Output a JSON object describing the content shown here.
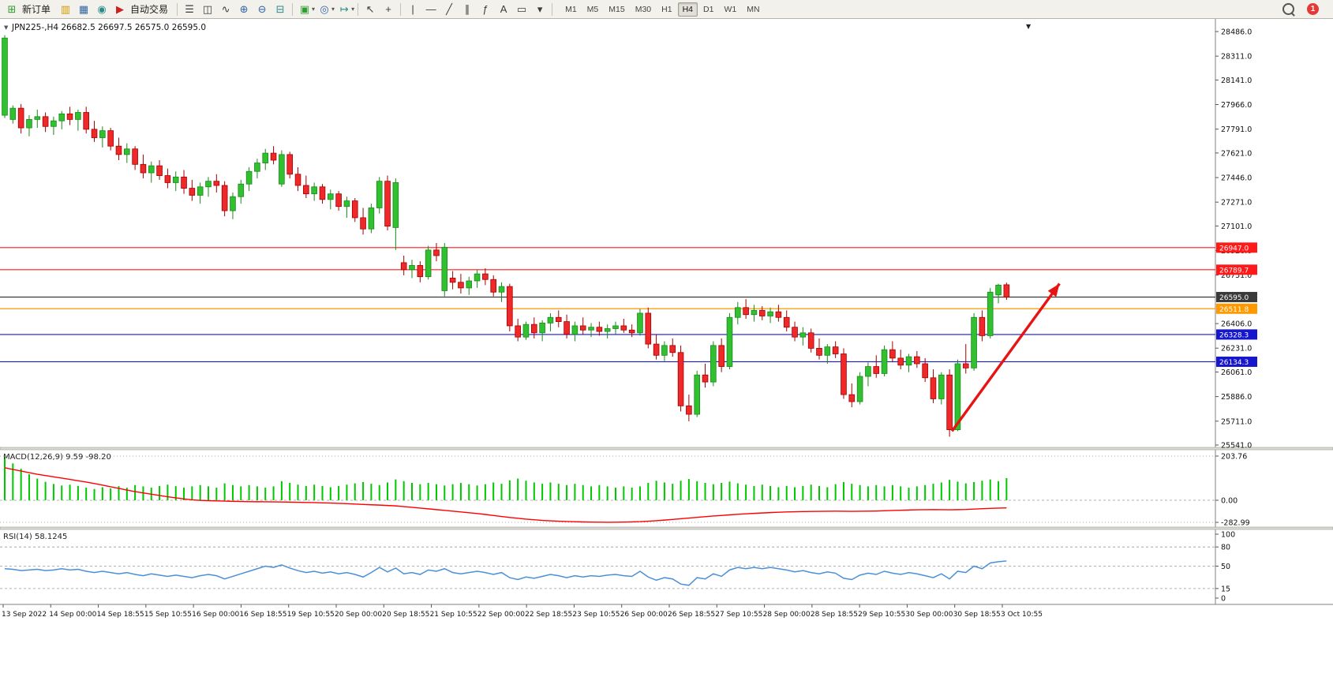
{
  "toolbar": {
    "new_order": "新订单",
    "auto_trading": "自动交易",
    "timeframes": [
      "M1",
      "M5",
      "M15",
      "M30",
      "H1",
      "H4",
      "D1",
      "W1",
      "MN"
    ],
    "active_timeframe": "H4",
    "notification_count": "1"
  },
  "icons": {
    "new_order": "⊞",
    "market_watch": "▥",
    "data_window": "▦",
    "alerts": "◉",
    "auto_trading": "▶",
    "bar_chart": "☰",
    "candle_chart": "◫",
    "line_chart": "∿",
    "zoom_in": "⊕",
    "zoom_out": "⊖",
    "tile_windows": "⊟",
    "new_chart": "▣",
    "navigator": "◎",
    "chart_shift": "↦",
    "cursor": "↖",
    "crosshair": "+",
    "vline": "|",
    "hline": "—",
    "trendline": "╱",
    "channel": "∥",
    "fibonacci": "ƒ",
    "text": "A",
    "label": "▭",
    "shapes": "▾",
    "dropdown": "▾",
    "chart_menu": "▼",
    "collapse": "▼"
  },
  "chart_data": {
    "type": "candlestick",
    "symbol": "JPN225-",
    "timeframe": "H4",
    "title_text": "JPN225-,H4 26682.5 26697.5 26575.0 26595.0",
    "current_ohlc": {
      "open": 26682.5,
      "high": 26697.5,
      "low": 26575.0,
      "close": 26595.0
    },
    "ylim": [
      25541.0,
      28486.0
    ],
    "price_axis_ticks": [
      28486.0,
      28311.0,
      28141.0,
      27966.0,
      27791.0,
      27621.0,
      27446.0,
      27271.0,
      27101.0,
      26926.0,
      26751.0,
      26406.0,
      26231.0,
      26061.0,
      25886.0,
      25711.0,
      25541.0
    ],
    "x_labels": [
      "13 Sep 2022",
      "14 Sep 00:00",
      "14 Sep 18:55",
      "15 Sep 10:55",
      "16 Sep 00:00",
      "16 Sep 18:55",
      "19 Sep 10:55",
      "20 Sep 00:00",
      "20 Sep 18:55",
      "21 Sep 10:55",
      "22 Sep 00:00",
      "22 Sep 18:55",
      "23 Sep 10:55",
      "26 Sep 00:00",
      "26 Sep 18:55",
      "27 Sep 10:55",
      "28 Sep 00:00",
      "28 Sep 18:55",
      "29 Sep 10:55",
      "30 Sep 00:00",
      "30 Sep 18:55",
      "3 Oct 10:55"
    ],
    "horizontal_lines": [
      {
        "price": 26947.0,
        "label": "26947.0",
        "color": "#ff1a1a"
      },
      {
        "price": 26789.7,
        "label": "26789.7",
        "color": "#ff1a1a"
      },
      {
        "price": 26595.0,
        "label": "26595.0",
        "color": "#3a3a3a"
      },
      {
        "price": 26511.8,
        "label": "26511.8",
        "color": "#ff9900"
      },
      {
        "price": 26328.3,
        "label": "26328.3",
        "color": "#1616cc"
      },
      {
        "price": 26134.3,
        "label": "26134.3",
        "color": "#1616cc"
      }
    ],
    "arrow_annotation": {
      "from_index": 116.3,
      "from_price": 25640,
      "to_index": 129.5,
      "to_price": 26690,
      "color": "#e81313"
    },
    "colors": {
      "up_fill": "#30c030",
      "up_stroke": "#1a8a1a",
      "down_fill": "#ef2929",
      "down_stroke": "#a40000"
    },
    "candles_ohlc": [
      [
        27890,
        28460,
        27870,
        28440
      ],
      [
        27860,
        27960,
        27830,
        27940
      ],
      [
        27940,
        27970,
        27760,
        27800
      ],
      [
        27800,
        27890,
        27740,
        27860
      ],
      [
        27860,
        27930,
        27800,
        27880
      ],
      [
        27880,
        27910,
        27770,
        27810
      ],
      [
        27810,
        27880,
        27750,
        27850
      ],
      [
        27850,
        27920,
        27790,
        27900
      ],
      [
        27900,
        27950,
        27820,
        27860
      ],
      [
        27860,
        27930,
        27780,
        27910
      ],
      [
        27910,
        27950,
        27760,
        27790
      ],
      [
        27790,
        27850,
        27700,
        27730
      ],
      [
        27730,
        27810,
        27660,
        27780
      ],
      [
        27780,
        27800,
        27640,
        27670
      ],
      [
        27670,
        27730,
        27570,
        27610
      ],
      [
        27610,
        27690,
        27550,
        27650
      ],
      [
        27650,
        27670,
        27500,
        27540
      ],
      [
        27540,
        27610,
        27440,
        27480
      ],
      [
        27480,
        27560,
        27410,
        27530
      ],
      [
        27530,
        27570,
        27430,
        27460
      ],
      [
        27460,
        27510,
        27370,
        27410
      ],
      [
        27410,
        27490,
        27350,
        27450
      ],
      [
        27450,
        27500,
        27330,
        27370
      ],
      [
        27370,
        27430,
        27280,
        27320
      ],
      [
        27320,
        27410,
        27260,
        27380
      ],
      [
        27380,
        27450,
        27310,
        27420
      ],
      [
        27420,
        27470,
        27340,
        27390
      ],
      [
        27390,
        27420,
        27170,
        27210
      ],
      [
        27210,
        27340,
        27150,
        27310
      ],
      [
        27310,
        27430,
        27260,
        27400
      ],
      [
        27400,
        27520,
        27350,
        27490
      ],
      [
        27490,
        27580,
        27440,
        27550
      ],
      [
        27550,
        27650,
        27500,
        27620
      ],
      [
        27620,
        27670,
        27540,
        27570
      ],
      [
        27400,
        27640,
        27380,
        27610
      ],
      [
        27610,
        27630,
        27440,
        27470
      ],
      [
        27470,
        27520,
        27350,
        27390
      ],
      [
        27390,
        27460,
        27300,
        27330
      ],
      [
        27330,
        27410,
        27280,
        27380
      ],
      [
        27380,
        27400,
        27260,
        27290
      ],
      [
        27290,
        27360,
        27220,
        27330
      ],
      [
        27330,
        27350,
        27210,
        27240
      ],
      [
        27240,
        27310,
        27160,
        27280
      ],
      [
        27280,
        27300,
        27130,
        27160
      ],
      [
        27160,
        27230,
        27040,
        27080
      ],
      [
        27080,
        27260,
        27050,
        27230
      ],
      [
        27230,
        27450,
        27190,
        27420
      ],
      [
        27420,
        27460,
        27070,
        27100
      ],
      [
        27090,
        27440,
        26930,
        27410
      ],
      [
        26840,
        26890,
        26750,
        26790
      ],
      [
        26790,
        26860,
        26730,
        26820
      ],
      [
        26820,
        26850,
        26700,
        26740
      ],
      [
        26740,
        26960,
        26720,
        26930
      ],
      [
        26930,
        26980,
        26850,
        26890
      ],
      [
        26640,
        26980,
        26600,
        26950
      ],
      [
        26730,
        26780,
        26650,
        26700
      ],
      [
        26700,
        26760,
        26620,
        26660
      ],
      [
        26660,
        26740,
        26610,
        26710
      ],
      [
        26710,
        26790,
        26660,
        26760
      ],
      [
        26760,
        26800,
        26680,
        26720
      ],
      [
        26720,
        26750,
        26600,
        26630
      ],
      [
        26630,
        26700,
        26560,
        26670
      ],
      [
        26670,
        26690,
        26350,
        26390
      ],
      [
        26390,
        26440,
        26280,
        26310
      ],
      [
        26310,
        26420,
        26290,
        26400
      ],
      [
        26400,
        26450,
        26300,
        26340
      ],
      [
        26340,
        26430,
        26280,
        26410
      ],
      [
        26410,
        26480,
        26350,
        26450
      ],
      [
        26450,
        26500,
        26380,
        26420
      ],
      [
        26420,
        26470,
        26300,
        26330
      ],
      [
        26330,
        26420,
        26280,
        26390
      ],
      [
        26390,
        26450,
        26330,
        26360
      ],
      [
        26360,
        26410,
        26310,
        26380
      ],
      [
        26380,
        26420,
        26320,
        26350
      ],
      [
        26350,
        26400,
        26300,
        26370
      ],
      [
        26370,
        26420,
        26330,
        26390
      ],
      [
        26390,
        26440,
        26340,
        26360
      ],
      [
        26360,
        26400,
        26310,
        26340
      ],
      [
        26340,
        26510,
        26320,
        26480
      ],
      [
        26480,
        26520,
        26230,
        26260
      ],
      [
        26260,
        26330,
        26150,
        26180
      ],
      [
        26180,
        26280,
        26140,
        26250
      ],
      [
        26250,
        26300,
        26170,
        26200
      ],
      [
        26200,
        26250,
        25780,
        25820
      ],
      [
        25820,
        25900,
        25710,
        25760
      ],
      [
        25760,
        26070,
        25740,
        26040
      ],
      [
        26040,
        26120,
        25950,
        25990
      ],
      [
        25990,
        26280,
        25960,
        26250
      ],
      [
        26250,
        26300,
        26060,
        26100
      ],
      [
        26100,
        26480,
        26080,
        26450
      ],
      [
        26450,
        26560,
        26400,
        26520
      ],
      [
        26520,
        26580,
        26440,
        26470
      ],
      [
        26470,
        26540,
        26420,
        26500
      ],
      [
        26500,
        26530,
        26430,
        26460
      ],
      [
        26460,
        26520,
        26410,
        26490
      ],
      [
        26490,
        26540,
        26420,
        26450
      ],
      [
        26450,
        26500,
        26350,
        26380
      ],
      [
        26380,
        26420,
        26280,
        26310
      ],
      [
        26310,
        26380,
        26250,
        26340
      ],
      [
        26340,
        26370,
        26200,
        26230
      ],
      [
        26230,
        26300,
        26150,
        26180
      ],
      [
        26180,
        26260,
        26120,
        26240
      ],
      [
        26240,
        26280,
        26160,
        26190
      ],
      [
        26190,
        26230,
        25870,
        25900
      ],
      [
        25900,
        25980,
        25810,
        25850
      ],
      [
        25850,
        26060,
        25830,
        26030
      ],
      [
        26030,
        26130,
        25960,
        26100
      ],
      [
        26100,
        26180,
        26020,
        26050
      ],
      [
        26050,
        26250,
        26030,
        26220
      ],
      [
        26220,
        26280,
        26130,
        26160
      ],
      [
        26160,
        26220,
        26080,
        26110
      ],
      [
        26110,
        26190,
        26060,
        26170
      ],
      [
        26170,
        26210,
        26090,
        26120
      ],
      [
        26120,
        26160,
        25990,
        26020
      ],
      [
        26020,
        26080,
        25840,
        25870
      ],
      [
        25870,
        26060,
        25830,
        26040
      ],
      [
        26040,
        26080,
        25600,
        25650
      ],
      [
        25650,
        26150,
        25640,
        26120
      ],
      [
        26120,
        26260,
        26050,
        26090
      ],
      [
        26090,
        26480,
        26070,
        26450
      ],
      [
        26450,
        26500,
        26280,
        26320
      ],
      [
        26320,
        26660,
        26300,
        26630
      ],
      [
        26610,
        26690,
        26550,
        26680
      ],
      [
        26682.5,
        26697.5,
        26575.0,
        26595.0
      ]
    ],
    "indicators": {
      "macd": {
        "label": "MACD(12,26,9)",
        "values_text": "9.59 -98.20",
        "value": 9.59,
        "signal_value": -98.2,
        "scale_labels": [
          "203.76",
          "0.00",
          "-282.99"
        ],
        "scale_values": [
          203.76,
          0,
          -282.99
        ],
        "hist_color": "#00c800",
        "signal_color": "#ff0000",
        "histogram": [
          200,
          170,
          145,
          120,
          100,
          85,
          75,
          68,
          72,
          66,
          58,
          52,
          60,
          55,
          65,
          58,
          70,
          64,
          58,
          66,
          72,
          65,
          58,
          64,
          70,
          64,
          58,
          78,
          70,
          64,
          70,
          64,
          58,
          64,
          88,
          80,
          72,
          66,
          72,
          66,
          60,
          66,
          72,
          78,
          84,
          76,
          70,
          82,
          96,
          88,
          80,
          74,
          80,
          74,
          68,
          74,
          80,
          74,
          68,
          74,
          82,
          76,
          92,
          100,
          90,
          82,
          76,
          82,
          76,
          70,
          76,
          70,
          64,
          70,
          64,
          58,
          64,
          58,
          64,
          80,
          90,
          82,
          76,
          90,
          98,
          88,
          80,
          74,
          80,
          86,
          78,
          72,
          66,
          72,
          66,
          60,
          66,
          60,
          66,
          72,
          66,
          60,
          74,
          84,
          76,
          70,
          64,
          70,
          64,
          70,
          64,
          58,
          64,
          70,
          76,
          82,
          94,
          86,
          78,
          84,
          90,
          96,
          88,
          102
        ],
        "signal_line": [
          150,
          142,
          135,
          127,
          120,
          114,
          108,
          102,
          96,
          90,
          84,
          77,
          70,
          62,
          55,
          47,
          40,
          34,
          28,
          22,
          16,
          11,
          6,
          2,
          -2,
          -5,
          -8,
          -11,
          -14,
          -16,
          -18,
          -19,
          -20,
          -21,
          -22,
          -24,
          -26,
          -28,
          -30,
          -33,
          -36,
          -40,
          -44,
          -49,
          -54,
          -58,
          -62,
          -67,
          -72,
          -81,
          -90,
          -100,
          -110,
          -120,
          -130,
          -140,
          -150,
          -160,
          -170,
          -182,
          -195,
          -208,
          -220,
          -231,
          -242,
          -250,
          -258,
          -263,
          -268,
          -272,
          -275,
          -278,
          -280,
          -281,
          -282,
          -281,
          -280,
          -277,
          -274,
          -268,
          -262,
          -254,
          -246,
          -237,
          -228,
          -219,
          -210,
          -202,
          -195,
          -187,
          -180,
          -174,
          -168,
          -163,
          -158,
          -154,
          -150,
          -147,
          -145,
          -143,
          -142,
          -141,
          -140,
          -141,
          -142,
          -141,
          -140,
          -138,
          -135,
          -131,
          -128,
          -125,
          -122,
          -121,
          -120,
          -121,
          -122,
          -120,
          -118,
          -113,
          -108,
          -104,
          -100,
          -98.2
        ]
      },
      "rsi": {
        "label": "RSI(14)",
        "value_text": "58.1245",
        "value": 58.1245,
        "levels": [
          80,
          50,
          15
        ],
        "scale_labels": [
          "100",
          "80",
          "50",
          "15",
          "0"
        ],
        "line_color": "#4a90d9",
        "series": [
          46,
          45,
          43,
          44,
          45,
          43,
          44,
          46,
          44,
          45,
          42,
          40,
          42,
          40,
          38,
          40,
          37,
          35,
          38,
          36,
          34,
          36,
          34,
          32,
          35,
          37,
          35,
          30,
          34,
          38,
          42,
          46,
          50,
          48,
          52,
          47,
          43,
          40,
          42,
          39,
          41,
          38,
          40,
          37,
          33,
          40,
          48,
          41,
          47,
          38,
          40,
          37,
          44,
          42,
          46,
          40,
          38,
          40,
          42,
          40,
          37,
          40,
          32,
          29,
          33,
          31,
          34,
          37,
          35,
          32,
          35,
          33,
          35,
          34,
          36,
          37,
          35,
          34,
          42,
          33,
          28,
          32,
          30,
          22,
          20,
          32,
          30,
          38,
          34,
          44,
          48,
          46,
          48,
          46,
          48,
          46,
          44,
          41,
          43,
          40,
          38,
          41,
          39,
          31,
          29,
          36,
          39,
          37,
          42,
          39,
          37,
          40,
          38,
          35,
          32,
          38,
          30,
          42,
          40,
          50,
          46,
          55,
          57,
          58.1
        ]
      }
    }
  }
}
